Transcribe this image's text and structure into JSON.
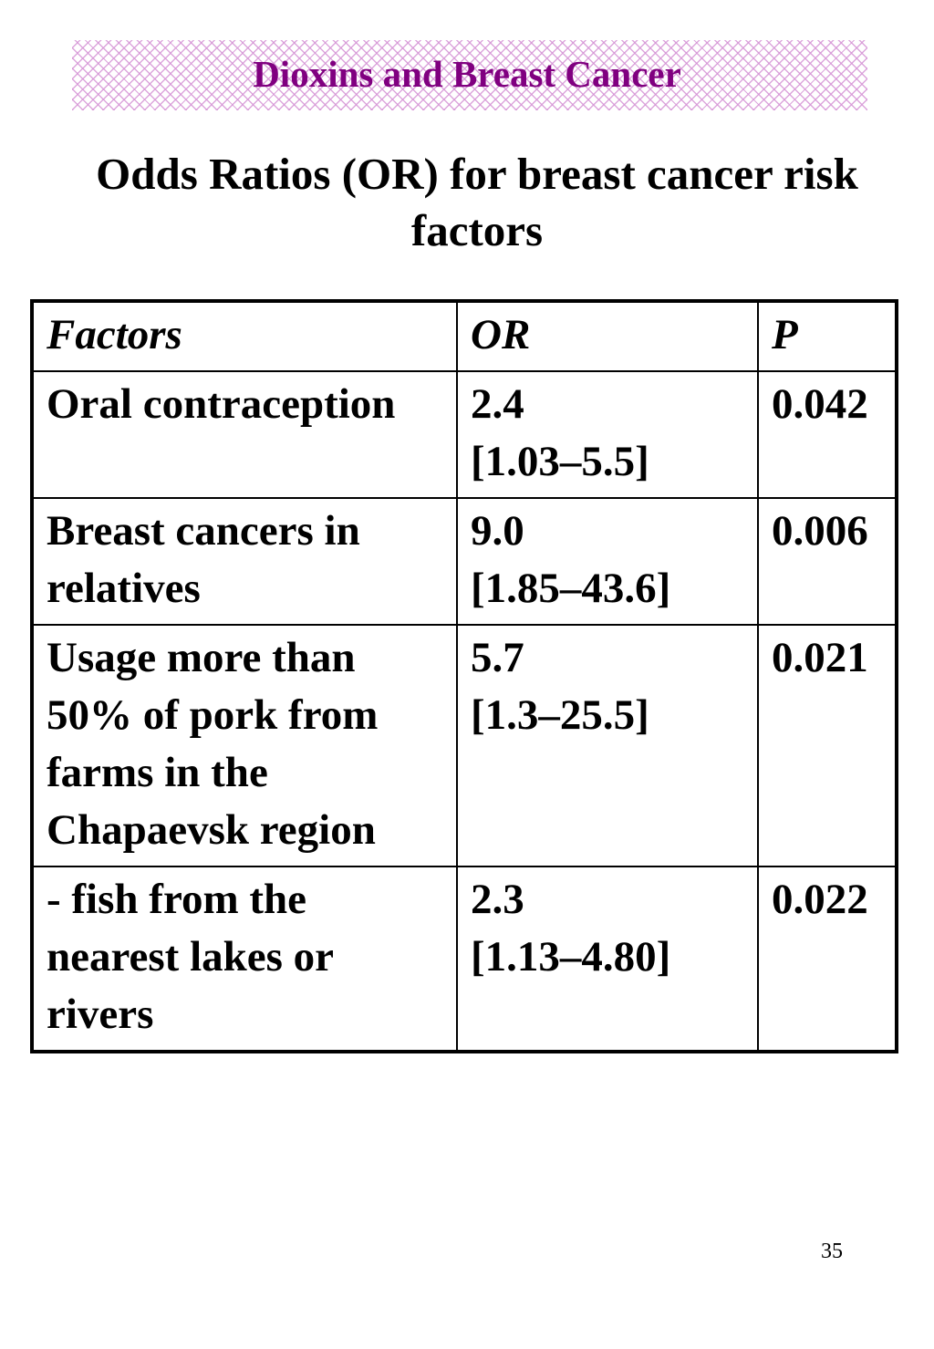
{
  "slide": {
    "title": "Dioxins and Breast Cancer",
    "subtitle": "Odds Ratios (OR) for breast cancer risk factors",
    "page_number": "35"
  },
  "colors": {
    "title_text": "#800080",
    "banner_pattern": "#d696d6"
  },
  "table": {
    "headers": [
      "Factors",
      "OR",
      "P"
    ],
    "rows": [
      {
        "factor": "Oral contraception",
        "or": "2.4",
        "ci": "[1.03–5.5]",
        "p": "0.042"
      },
      {
        "factor": "Breast cancers in relatives",
        "or": "9.0",
        "ci": "[1.85–43.6]",
        "p": "0.006"
      },
      {
        "factor": "Usage more than 50% of pork from farms in the Chapaevsk region",
        "or": "5.7",
        "ci": "[1.3–25.5]",
        "p": "0.021"
      },
      {
        "factor": "- fish from the nearest lakes or rivers",
        "or": "2.3",
        "ci": "[1.13–4.80]",
        "p": "0.022"
      }
    ]
  }
}
